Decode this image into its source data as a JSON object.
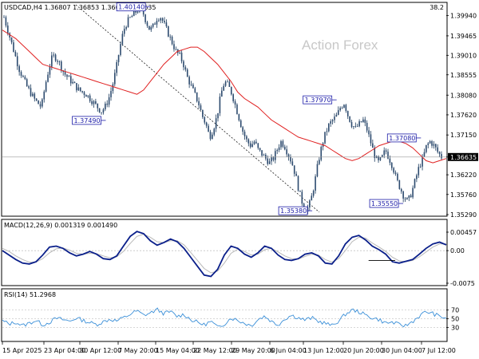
{
  "chart_data": {
    "type": "line",
    "symbol_header": "USDCAD,H4  1.36807 1.36853 1.36628 1.36635",
    "watermark": "Action Forex",
    "corner_value": "38.2",
    "x_ticks": [
      "15 Apr 2025",
      "23 Apr 04:00",
      "30 Apr 12:00",
      "7 May 20:00",
      "15 May 04:00",
      "22 May 12:00",
      "29 May 20:00",
      "6 Jun 04:00",
      "13 Jun 12:00",
      "20 Jun 20:00",
      "30 Jun 04:00",
      "7 Jul 12:00"
    ],
    "price_panel": {
      "ylim": [
        1.3529,
        1.4019
      ],
      "y_ticks": [
        "1.39940",
        "1.39465",
        "1.39010",
        "1.38555",
        "1.38080",
        "1.37620",
        "1.37150",
        "1.36635",
        "1.36220",
        "1.35760",
        "1.35290"
      ],
      "last_price": 1.36635,
      "last_price_label": "1.36635",
      "candle_close_path": [
        1.399,
        1.396,
        1.393,
        1.39,
        1.387,
        1.385,
        1.383,
        1.3815,
        1.38,
        1.379,
        1.378,
        1.383,
        1.387,
        1.39,
        1.3895,
        1.388,
        1.386,
        1.385,
        1.384,
        1.383,
        1.382,
        1.3815,
        1.381,
        1.38,
        1.379,
        1.378,
        1.377,
        1.378,
        1.38,
        1.383,
        1.387,
        1.392,
        1.396,
        1.398,
        1.399,
        1.4,
        1.401,
        1.4005,
        1.398,
        1.396,
        1.397,
        1.399,
        1.399,
        1.397,
        1.395,
        1.393,
        1.391,
        1.39,
        1.388,
        1.385,
        1.383,
        1.381,
        1.379,
        1.376,
        1.374,
        1.371,
        1.373,
        1.376,
        1.381,
        1.384,
        1.383,
        1.381,
        1.378,
        1.375,
        1.372,
        1.37,
        1.369,
        1.37,
        1.368,
        1.367,
        1.366,
        1.365,
        1.366,
        1.368,
        1.37,
        1.369,
        1.367,
        1.365,
        1.362,
        1.358,
        1.355,
        1.354,
        1.356,
        1.36,
        1.365,
        1.369,
        1.372,
        1.374,
        1.375,
        1.376,
        1.378,
        1.379,
        1.376,
        1.374,
        1.373,
        1.374,
        1.375,
        1.373,
        1.37,
        1.367,
        1.365,
        1.366,
        1.368,
        1.366,
        1.364,
        1.361,
        1.359,
        1.357,
        1.356,
        1.358,
        1.361,
        1.364,
        1.366,
        1.369,
        1.37,
        1.369,
        1.3675,
        1.36635
      ],
      "ma_path": [
        1.396,
        1.395,
        1.394,
        1.3925,
        1.391,
        1.3895,
        1.388,
        1.3875,
        1.387,
        1.3865,
        1.386,
        1.3855,
        1.385,
        1.3845,
        1.384,
        1.3835,
        1.383,
        1.3825,
        1.382,
        1.3815,
        1.381,
        1.382,
        1.384,
        1.386,
        1.388,
        1.3895,
        1.391,
        1.3915,
        1.392,
        1.392,
        1.391,
        1.3895,
        1.388,
        1.386,
        1.384,
        1.3815,
        1.38,
        1.379,
        1.378,
        1.3765,
        1.375,
        1.374,
        1.373,
        1.372,
        1.371,
        1.3705,
        1.37,
        1.3695,
        1.369,
        1.368,
        1.367,
        1.366,
        1.3655,
        1.366,
        1.367,
        1.368,
        1.369,
        1.3695,
        1.37,
        1.37,
        1.3695,
        1.3685,
        1.367,
        1.3655,
        1.365,
        1.3655,
        1.366
      ],
      "callouts": [
        {
          "label": "1.40140",
          "value": 1.4014,
          "at": 0.315
        },
        {
          "label": "1.37490",
          "value": 1.3749,
          "at": 0.215
        },
        {
          "label": "1.37970",
          "value": 1.3797,
          "at": 0.735
        },
        {
          "label": "1.37080",
          "value": 1.3708,
          "at": 0.925
        },
        {
          "label": "1.35380",
          "value": 1.3538,
          "at": 0.68
        },
        {
          "label": "1.35550",
          "value": 1.3555,
          "at": 0.885
        }
      ]
    },
    "macd_panel": {
      "header": "MACD(12,26,9) 0.001319 0.001490",
      "ylim": [
        -0.0075,
        0.0045
      ],
      "y_ticks": [
        "0.00457",
        "0.00",
        "-0.0075"
      ],
      "macd_path": [
        0.0,
        -0.001,
        -0.002,
        -0.0028,
        -0.003,
        -0.0025,
        -0.001,
        0.0008,
        0.001,
        0.0005,
        -0.0005,
        -0.0012,
        -0.0008,
        -0.0002,
        -0.0008,
        -0.0018,
        -0.002,
        -0.0012,
        0.001,
        0.0032,
        0.0043,
        0.0038,
        0.0022,
        0.0012,
        0.0018,
        0.0026,
        0.002,
        0.0005,
        -0.0015,
        -0.0035,
        -0.0055,
        -0.0058,
        -0.0042,
        -0.001,
        0.001,
        0.0005,
        -0.0008,
        -0.0015,
        -0.0005,
        0.001,
        0.0005,
        -0.001,
        -0.002,
        -0.0022,
        -0.0018,
        -0.0008,
        -0.0005,
        -0.0012,
        -0.0028,
        -0.003,
        -0.0012,
        0.0015,
        0.003,
        0.0034,
        0.0024,
        0.001,
        0.0002,
        -0.0008,
        -0.0025,
        -0.0028,
        -0.0024,
        -0.002,
        -0.0008,
        0.0005,
        0.0015,
        0.0019,
        0.0013
      ],
      "signal_path": [
        0.0005,
        -0.0002,
        -0.0012,
        -0.002,
        -0.0026,
        -0.0026,
        -0.0018,
        -0.0005,
        0.0004,
        0.0006,
        0.0001,
        -0.0006,
        -0.0008,
        -0.0006,
        -0.0007,
        -0.0012,
        -0.0016,
        -0.0014,
        -0.0002,
        0.0016,
        0.0032,
        0.0037,
        0.003,
        0.002,
        0.0018,
        0.0022,
        0.0022,
        0.0013,
        -0.0004,
        -0.0022,
        -0.004,
        -0.005,
        -0.0046,
        -0.0028,
        -0.0006,
        0.0003,
        -0.0002,
        -0.001,
        -0.0008,
        0.0002,
        0.0005,
        -0.0003,
        -0.0012,
        -0.0018,
        -0.0019,
        -0.0013,
        -0.0008,
        -0.001,
        -0.002,
        -0.0026,
        -0.0018,
        0.0,
        0.002,
        0.003,
        0.0028,
        0.0017,
        0.0008,
        -0.0002,
        -0.0015,
        -0.0023,
        -0.0025,
        -0.0022,
        -0.0014,
        -0.0003,
        0.0008,
        0.0015,
        0.0015
      ],
      "trendline": {
        "from": [
          0.825,
          -0.0022
        ],
        "to": [
          0.885,
          -0.0022
        ]
      }
    },
    "rsi_panel": {
      "header": "RSI(14) 51.2968",
      "ylim": [
        0,
        100
      ],
      "y_ticks": [
        "70",
        "50",
        "30"
      ],
      "values": [
        45,
        38,
        42,
        34,
        40,
        46,
        36,
        42,
        51,
        48,
        44,
        52,
        46,
        41,
        37,
        43,
        49,
        45,
        52,
        60,
        68,
        58,
        63,
        71,
        62,
        66,
        55,
        60,
        48,
        42,
        36,
        44,
        30,
        38,
        52,
        46,
        40,
        34,
        48,
        56,
        44,
        36,
        50,
        58,
        52,
        47,
        52,
        44,
        40,
        34,
        45,
        60,
        70,
        66,
        58,
        52,
        48,
        40,
        42,
        36,
        34,
        44,
        56,
        66,
        62,
        55,
        51.3
      ]
    }
  }
}
